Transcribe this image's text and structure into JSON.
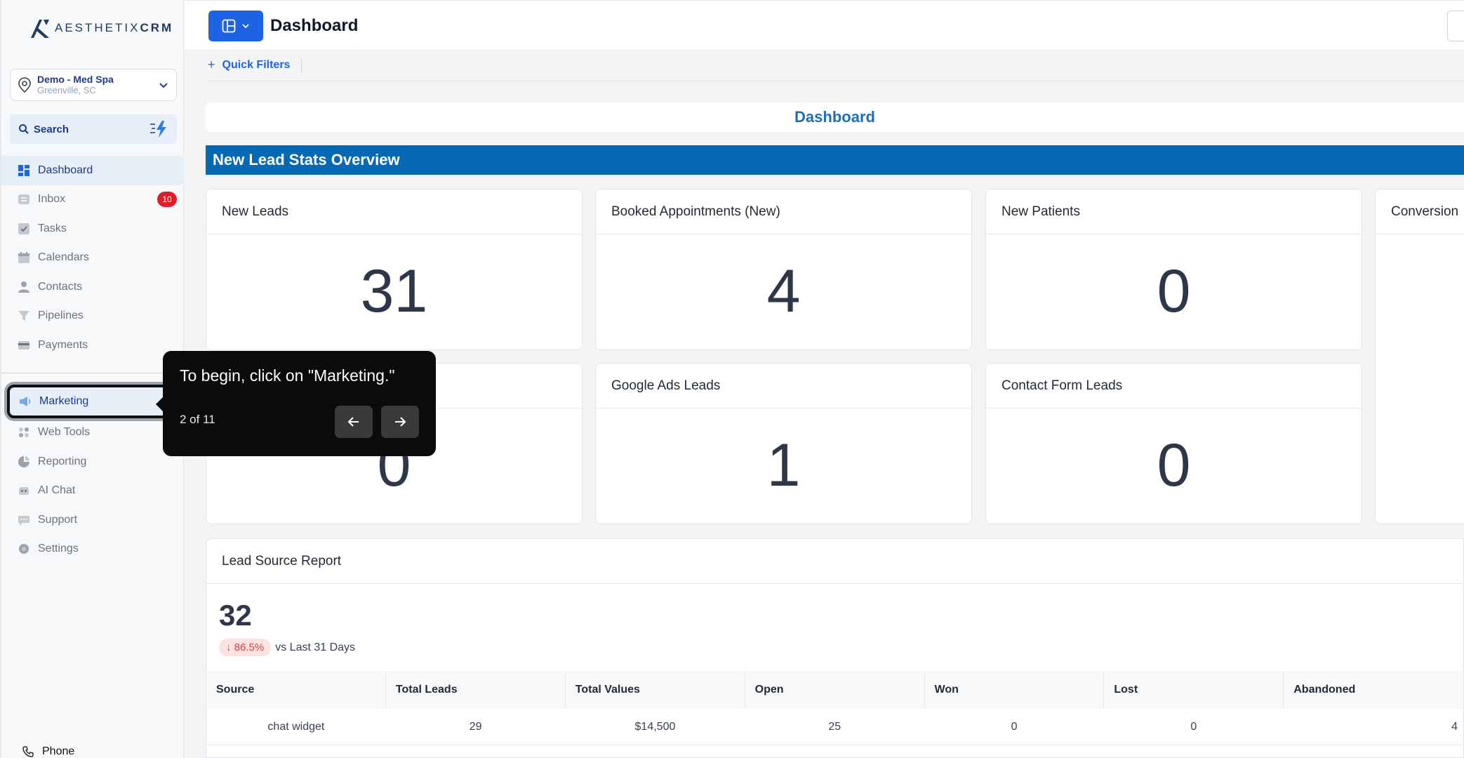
{
  "brand": {
    "name_light": "AESTHETIX",
    "name_bold": "CRM"
  },
  "location": {
    "name": "Demo - Med Spa",
    "city": "Greenville, SC"
  },
  "search": {
    "label": "Search"
  },
  "nav": {
    "items": [
      {
        "label": "Dashboard",
        "icon": "dashboard-icon",
        "active": true
      },
      {
        "label": "Inbox",
        "icon": "inbox-icon",
        "badge": "10"
      },
      {
        "label": "Tasks",
        "icon": "tasks-icon"
      },
      {
        "label": "Calendars",
        "icon": "calendar-icon"
      },
      {
        "label": "Contacts",
        "icon": "contacts-icon"
      },
      {
        "label": "Pipelines",
        "icon": "pipelines-icon"
      },
      {
        "label": "Payments",
        "icon": "payments-icon"
      }
    ],
    "lower": [
      {
        "label": "Marketing",
        "icon": "megaphone-icon",
        "highlight": true
      },
      {
        "label": "Web Tools",
        "icon": "web-tools-icon"
      },
      {
        "label": "Reporting",
        "icon": "pie-chart-icon"
      },
      {
        "label": "AI Chat",
        "icon": "ai-chat-icon"
      },
      {
        "label": "Support",
        "icon": "support-icon"
      },
      {
        "label": "Settings",
        "icon": "gear-icon"
      }
    ],
    "phone": "Phone"
  },
  "header": {
    "title": "Dashboard"
  },
  "filters": {
    "label": "Quick Filters"
  },
  "dashboard": {
    "title": "Dashboard"
  },
  "section": {
    "title": "New Lead Stats Overview"
  },
  "cards": [
    {
      "title": "New Leads",
      "value": "31"
    },
    {
      "title": "Booked Appointments (New)",
      "value": "4"
    },
    {
      "title": "New Patients",
      "value": "0"
    },
    {
      "title": "Conversion",
      "value": ""
    },
    {
      "title": "",
      "value": "0"
    },
    {
      "title": "Google Ads Leads",
      "value": "1"
    },
    {
      "title": "Contact Form Leads",
      "value": "0"
    }
  ],
  "report": {
    "title": "Lead Source Report",
    "total": "32",
    "change": "86.5%",
    "change_direction": "down",
    "compare_label": "vs Last 31 Days",
    "columns": [
      "Source",
      "Total Leads",
      "Total Values",
      "Open",
      "Won",
      "Lost",
      "Abandoned"
    ],
    "rows": [
      [
        "chat widget",
        "29",
        "$14,500",
        "25",
        "0",
        "0",
        "4"
      ]
    ]
  },
  "tooltip": {
    "text": "To begin, click on \"Marketing.\"",
    "step": "2 of 11",
    "prev_icon": "arrow-left-icon",
    "next_icon": "arrow-right-icon"
  },
  "colors": {
    "primary": "#1d63e3",
    "section": "#0768b4",
    "badge": "#e11d2b",
    "tooltip": "#0b0b0b"
  }
}
